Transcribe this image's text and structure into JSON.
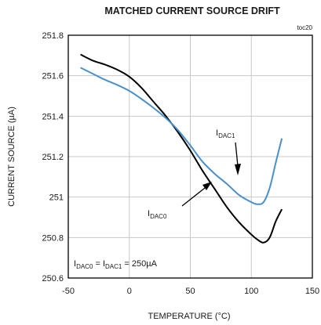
{
  "chart_data": {
    "type": "line",
    "title": "MATCHED CURRENT SOURCE DRIFT",
    "tag": "toc20",
    "xlabel": "TEMPERATURE (°C)",
    "ylabel": "CURRENT SOURCE (µA)",
    "xlim": [
      -50,
      150
    ],
    "ylim": [
      250.6,
      251.8
    ],
    "x_ticks": [
      -50,
      0,
      50,
      100,
      150
    ],
    "x_tick_labels": [
      "-50",
      "0",
      "50",
      "100",
      "150"
    ],
    "y_ticks": [
      250.6,
      250.8,
      251.0,
      251.2,
      251.4,
      251.6,
      251.8
    ],
    "y_tick_labels": [
      "250.6",
      "250.8",
      "251",
      "251.2",
      "251.4",
      "251.6",
      "251.8"
    ],
    "grid": true,
    "condition": {
      "main": "I",
      "sub1": "DAC0",
      "eq1": " = I",
      "sub2": "DAC1",
      "eq2": " = 250µA"
    },
    "series": [
      {
        "name": "IDAC0",
        "label_main": "I",
        "label_sub": "DAC0",
        "color": "#000000",
        "x": [
          -40,
          -30,
          -20,
          -10,
          0,
          10,
          20,
          30,
          40,
          50,
          60,
          70,
          80,
          90,
          100,
          105,
          110,
          115,
          120,
          125
        ],
        "y": [
          251.705,
          251.675,
          251.655,
          251.63,
          251.595,
          251.54,
          251.47,
          251.4,
          251.32,
          251.23,
          251.13,
          251.04,
          250.95,
          250.875,
          250.815,
          250.79,
          250.775,
          250.8,
          250.88,
          250.94
        ]
      },
      {
        "name": "IDAC1",
        "label_main": "I",
        "label_sub": "DAC1",
        "color": "#4a90c8",
        "x": [
          -40,
          -30,
          -20,
          -10,
          0,
          10,
          20,
          30,
          40,
          50,
          60,
          70,
          80,
          90,
          100,
          105,
          110,
          115,
          120,
          125
        ],
        "y": [
          251.64,
          251.61,
          251.58,
          251.555,
          251.525,
          251.485,
          251.44,
          251.39,
          251.33,
          251.255,
          251.175,
          251.115,
          251.065,
          251.01,
          250.975,
          250.965,
          250.975,
          251.045,
          251.17,
          251.29
        ]
      }
    ]
  }
}
